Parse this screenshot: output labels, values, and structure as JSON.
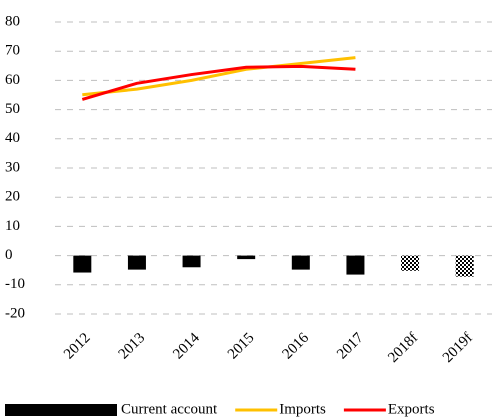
{
  "chart_data": {
    "type": "bar",
    "categories": [
      "2012",
      "2013",
      "2014",
      "2015",
      "2016",
      "2017",
      "2018f",
      "2019f"
    ],
    "series": [
      {
        "name": "Current account",
        "type": "bar",
        "color": "#000000",
        "values": [
          -5.8,
          -4.8,
          -4,
          -1.2,
          -4.8,
          -6.5,
          -5.2,
          -7.2
        ],
        "styles": [
          "solid",
          "solid",
          "solid",
          "solid",
          "solid",
          "solid",
          "checkered",
          "checkered"
        ]
      },
      {
        "name": "Imports",
        "type": "line",
        "color": "#ffc000",
        "values": [
          55.1,
          57,
          60,
          63.8,
          65.8,
          67.8,
          null,
          null
        ]
      },
      {
        "name": "Exports",
        "type": "line",
        "color": "#ff0000",
        "values": [
          53.5,
          59,
          62,
          64.5,
          64.8,
          63.8,
          null,
          null
        ]
      }
    ],
    "ylim": [
      -20,
      80
    ],
    "yticks": [
      -20,
      -10,
      0,
      10,
      20,
      30,
      40,
      50,
      60,
      70,
      80
    ],
    "grid": true,
    "legend": "bottom"
  }
}
